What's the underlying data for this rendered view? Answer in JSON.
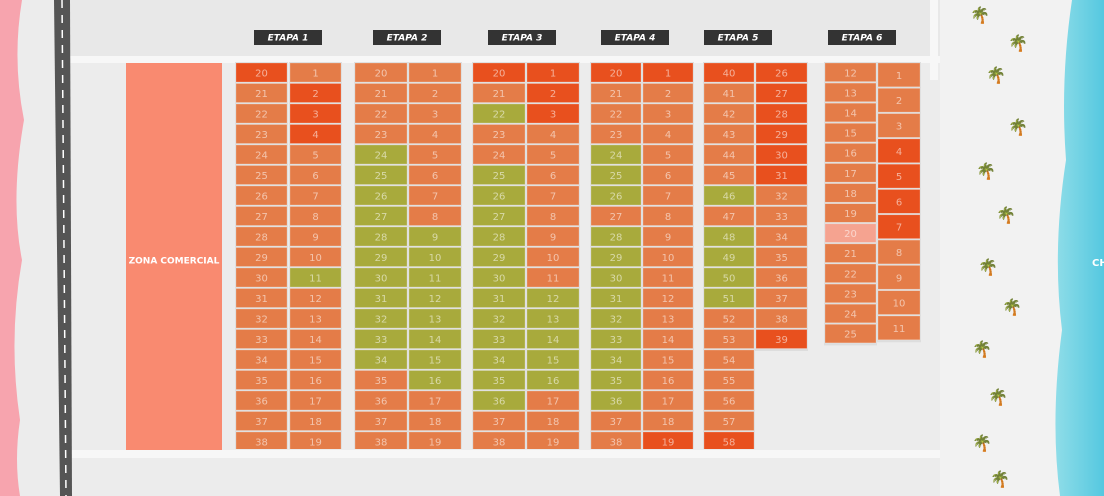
{
  "zone_label": "ZONA COMERCIAL",
  "shore_label": "CHICX",
  "stages": [
    {
      "label": "ETAPA 1",
      "columns": [
        [
          {
            "n": 20,
            "color": "#e8501e"
          },
          {
            "n": 21,
            "color": "#e47c48"
          },
          {
            "n": 22,
            "color": "#e47c48"
          },
          {
            "n": 23,
            "color": "#e47c48"
          },
          {
            "n": 24,
            "color": "#e47c48"
          },
          {
            "n": 25,
            "color": "#e47c48"
          },
          {
            "n": 26,
            "color": "#e47c48"
          },
          {
            "n": 27,
            "color": "#e47c48"
          },
          {
            "n": 28,
            "color": "#e47c48"
          },
          {
            "n": 29,
            "color": "#e47c48"
          },
          {
            "n": 30,
            "color": "#e47c48"
          },
          {
            "n": 31,
            "color": "#e47c48"
          },
          {
            "n": 32,
            "color": "#e47c48"
          },
          {
            "n": 33,
            "color": "#e47c48"
          },
          {
            "n": 34,
            "color": "#e47c48"
          },
          {
            "n": 35,
            "color": "#e47c48"
          },
          {
            "n": 36,
            "color": "#e47c48"
          },
          {
            "n": 37,
            "color": "#e47c48"
          },
          {
            "n": 38,
            "color": "#e47c48"
          }
        ],
        [
          {
            "n": 1,
            "color": "#e47c48"
          },
          {
            "n": 2,
            "color": "#e8501e"
          },
          {
            "n": 3,
            "color": "#e8501e"
          },
          {
            "n": 4,
            "color": "#e8501e"
          },
          {
            "n": 5,
            "color": "#e47c48"
          },
          {
            "n": 6,
            "color": "#e47c48"
          },
          {
            "n": 7,
            "color": "#e47c48"
          },
          {
            "n": 8,
            "color": "#e47c48"
          },
          {
            "n": 9,
            "color": "#e47c48"
          },
          {
            "n": 10,
            "color": "#e47c48"
          },
          {
            "n": 11,
            "color": "#a8aa3c"
          },
          {
            "n": 12,
            "color": "#e47c48"
          },
          {
            "n": 13,
            "color": "#e47c48"
          },
          {
            "n": 14,
            "color": "#e47c48"
          },
          {
            "n": 15,
            "color": "#e47c48"
          },
          {
            "n": 16,
            "color": "#e47c48"
          },
          {
            "n": 17,
            "color": "#e47c48"
          },
          {
            "n": 18,
            "color": "#e47c48"
          },
          {
            "n": 19,
            "color": "#e47c48"
          }
        ]
      ]
    },
    {
      "label": "ETAPA 2",
      "columns": [
        [
          {
            "n": 20,
            "color": "#e47c48"
          },
          {
            "n": 21,
            "color": "#e47c48"
          },
          {
            "n": 22,
            "color": "#e47c48"
          },
          {
            "n": 23,
            "color": "#e47c48"
          },
          {
            "n": 24,
            "color": "#a8aa3c"
          },
          {
            "n": 25,
            "color": "#a8aa3c"
          },
          {
            "n": 26,
            "color": "#a8aa3c"
          },
          {
            "n": 27,
            "color": "#a8aa3c"
          },
          {
            "n": 28,
            "color": "#a8aa3c"
          },
          {
            "n": 29,
            "color": "#a8aa3c"
          },
          {
            "n": 30,
            "color": "#a8aa3c"
          },
          {
            "n": 31,
            "color": "#a8aa3c"
          },
          {
            "n": 32,
            "color": "#a8aa3c"
          },
          {
            "n": 33,
            "color": "#a8aa3c"
          },
          {
            "n": 34,
            "color": "#a8aa3c"
          },
          {
            "n": 35,
            "color": "#e47c48"
          },
          {
            "n": 36,
            "color": "#e47c48"
          },
          {
            "n": 37,
            "color": "#e47c48"
          },
          {
            "n": 38,
            "color": "#e47c48"
          }
        ],
        [
          {
            "n": 1,
            "color": "#e47c48"
          },
          {
            "n": 2,
            "color": "#e47c48"
          },
          {
            "n": 3,
            "color": "#e47c48"
          },
          {
            "n": 4,
            "color": "#e47c48"
          },
          {
            "n": 5,
            "color": "#e47c48"
          },
          {
            "n": 6,
            "color": "#e47c48"
          },
          {
            "n": 7,
            "color": "#e47c48"
          },
          {
            "n": 8,
            "color": "#e47c48"
          },
          {
            "n": 9,
            "color": "#a8aa3c"
          },
          {
            "n": 10,
            "color": "#a8aa3c"
          },
          {
            "n": 11,
            "color": "#a8aa3c"
          },
          {
            "n": 12,
            "color": "#a8aa3c"
          },
          {
            "n": 13,
            "color": "#a8aa3c"
          },
          {
            "n": 14,
            "color": "#a8aa3c"
          },
          {
            "n": 15,
            "color": "#a8aa3c"
          },
          {
            "n": 16,
            "color": "#a8aa3c"
          },
          {
            "n": 17,
            "color": "#e47c48"
          },
          {
            "n": 18,
            "color": "#e47c48"
          },
          {
            "n": 19,
            "color": "#e47c48"
          }
        ]
      ]
    },
    {
      "label": "ETAPA 3",
      "columns": [
        [
          {
            "n": 20,
            "color": "#e8501e"
          },
          {
            "n": 21,
            "color": "#e47c48"
          },
          {
            "n": 22,
            "color": "#a8aa3c"
          },
          {
            "n": 23,
            "color": "#e47c48"
          },
          {
            "n": 24,
            "color": "#e47c48"
          },
          {
            "n": 25,
            "color": "#a8aa3c"
          },
          {
            "n": 26,
            "color": "#a8aa3c"
          },
          {
            "n": 27,
            "color": "#a8aa3c"
          },
          {
            "n": 28,
            "color": "#a8aa3c"
          },
          {
            "n": 29,
            "color": "#a8aa3c"
          },
          {
            "n": 30,
            "color": "#a8aa3c"
          },
          {
            "n": 31,
            "color": "#a8aa3c"
          },
          {
            "n": 32,
            "color": "#a8aa3c"
          },
          {
            "n": 33,
            "color": "#a8aa3c"
          },
          {
            "n": 34,
            "color": "#a8aa3c"
          },
          {
            "n": 35,
            "color": "#a8aa3c"
          },
          {
            "n": 36,
            "color": "#a8aa3c"
          },
          {
            "n": 37,
            "color": "#e47c48"
          },
          {
            "n": 38,
            "color": "#e47c48"
          }
        ],
        [
          {
            "n": 1,
            "color": "#e8501e"
          },
          {
            "n": 2,
            "color": "#e8501e"
          },
          {
            "n": 3,
            "color": "#e8501e"
          },
          {
            "n": 4,
            "color": "#e47c48"
          },
          {
            "n": 5,
            "color": "#e47c48"
          },
          {
            "n": 6,
            "color": "#e47c48"
          },
          {
            "n": 7,
            "color": "#e47c48"
          },
          {
            "n": 8,
            "color": "#e47c48"
          },
          {
            "n": 9,
            "color": "#e47c48"
          },
          {
            "n": 10,
            "color": "#e47c48"
          },
          {
            "n": 11,
            "color": "#e47c48"
          },
          {
            "n": 12,
            "color": "#a8aa3c"
          },
          {
            "n": 13,
            "color": "#a8aa3c"
          },
          {
            "n": 14,
            "color": "#a8aa3c"
          },
          {
            "n": 15,
            "color": "#a8aa3c"
          },
          {
            "n": 16,
            "color": "#a8aa3c"
          },
          {
            "n": 17,
            "color": "#e47c48"
          },
          {
            "n": 18,
            "color": "#e47c48"
          },
          {
            "n": 19,
            "color": "#e47c48"
          }
        ]
      ]
    },
    {
      "label": "ETAPA 4",
      "columns": [
        [
          {
            "n": 20,
            "color": "#e8501e"
          },
          {
            "n": 21,
            "color": "#e47c48"
          },
          {
            "n": 22,
            "color": "#e47c48"
          },
          {
            "n": 23,
            "color": "#e47c48"
          },
          {
            "n": 24,
            "color": "#a8aa3c"
          },
          {
            "n": 25,
            "color": "#a8aa3c"
          },
          {
            "n": 26,
            "color": "#a8aa3c"
          },
          {
            "n": 27,
            "color": "#e47c48"
          },
          {
            "n": 28,
            "color": "#a8aa3c"
          },
          {
            "n": 29,
            "color": "#a8aa3c"
          },
          {
            "n": 30,
            "color": "#a8aa3c"
          },
          {
            "n": 31,
            "color": "#a8aa3c"
          },
          {
            "n": 32,
            "color": "#a8aa3c"
          },
          {
            "n": 33,
            "color": "#a8aa3c"
          },
          {
            "n": 34,
            "color": "#a8aa3c"
          },
          {
            "n": 35,
            "color": "#a8aa3c"
          },
          {
            "n": 36,
            "color": "#a8aa3c"
          },
          {
            "n": 37,
            "color": "#e47c48"
          },
          {
            "n": 38,
            "color": "#e47c48"
          }
        ],
        [
          {
            "n": 1,
            "color": "#e8501e"
          },
          {
            "n": 2,
            "color": "#e47c48"
          },
          {
            "n": 3,
            "color": "#e47c48"
          },
          {
            "n": 4,
            "color": "#e47c48"
          },
          {
            "n": 5,
            "color": "#e47c48"
          },
          {
            "n": 6,
            "color": "#e47c48"
          },
          {
            "n": 7,
            "color": "#e47c48"
          },
          {
            "n": 8,
            "color": "#e47c48"
          },
          {
            "n": 9,
            "color": "#e47c48"
          },
          {
            "n": 10,
            "color": "#e47c48"
          },
          {
            "n": 11,
            "color": "#e47c48"
          },
          {
            "n": 12,
            "color": "#e47c48"
          },
          {
            "n": 13,
            "color": "#e47c48"
          },
          {
            "n": 14,
            "color": "#e47c48"
          },
          {
            "n": 15,
            "color": "#e47c48"
          },
          {
            "n": 16,
            "color": "#e47c48"
          },
          {
            "n": 17,
            "color": "#e47c48"
          },
          {
            "n": 18,
            "color": "#e47c48"
          },
          {
            "n": 19,
            "color": "#e8501e"
          }
        ]
      ]
    },
    {
      "label": "ETAPA 5",
      "columns": [
        [
          {
            "n": 40,
            "color": "#e8501e"
          },
          {
            "n": 41,
            "color": "#e47c48"
          },
          {
            "n": 42,
            "color": "#e47c48"
          },
          {
            "n": 43,
            "color": "#e47c48"
          },
          {
            "n": 44,
            "color": "#e47c48"
          },
          {
            "n": 45,
            "color": "#e47c48"
          },
          {
            "n": 46,
            "color": "#a8aa3c"
          },
          {
            "n": 47,
            "color": "#e47c48"
          },
          {
            "n": 48,
            "color": "#a8aa3c"
          },
          {
            "n": 49,
            "color": "#a8aa3c"
          },
          {
            "n": 50,
            "color": "#a8aa3c"
          },
          {
            "n": 51,
            "color": "#a8aa3c"
          },
          {
            "n": 52,
            "color": "#e47c48"
          },
          {
            "n": 53,
            "color": "#e47c48"
          },
          {
            "n": 54,
            "color": "#e47c48"
          },
          {
            "n": 55,
            "color": "#e47c48"
          },
          {
            "n": 56,
            "color": "#e47c48"
          },
          {
            "n": 57,
            "color": "#e47c48"
          },
          {
            "n": 58,
            "color": "#e8501e"
          }
        ],
        [
          {
            "n": 26,
            "color": "#e8501e"
          },
          {
            "n": 27,
            "color": "#e8501e"
          },
          {
            "n": 28,
            "color": "#e8501e"
          },
          {
            "n": 29,
            "color": "#e8501e"
          },
          {
            "n": 30,
            "color": "#e8501e"
          },
          {
            "n": 31,
            "color": "#e8501e"
          },
          {
            "n": 32,
            "color": "#e47c48"
          },
          {
            "n": 33,
            "color": "#e47c48"
          },
          {
            "n": 34,
            "color": "#e47c48"
          },
          {
            "n": 35,
            "color": "#e47c48"
          },
          {
            "n": 36,
            "color": "#e47c48"
          },
          {
            "n": 37,
            "color": "#e47c48"
          },
          {
            "n": 38,
            "color": "#e47c48"
          },
          {
            "n": 39,
            "color": "#e8501e"
          }
        ]
      ]
    },
    {
      "label": "ETAPA 6",
      "columns": [
        [
          {
            "n": 12,
            "color": "#e47c48"
          },
          {
            "n": 13,
            "color": "#e47c48"
          },
          {
            "n": 14,
            "color": "#e47c48"
          },
          {
            "n": 15,
            "color": "#e47c48"
          },
          {
            "n": 16,
            "color": "#e47c48"
          },
          {
            "n": 17,
            "color": "#e47c48"
          },
          {
            "n": 18,
            "color": "#e47c48"
          },
          {
            "n": 19,
            "color": "#e47c48"
          },
          {
            "n": 20,
            "color": "#f5a390"
          },
          {
            "n": 21,
            "color": "#e47c48"
          },
          {
            "n": 22,
            "color": "#e47c48"
          },
          {
            "n": 23,
            "color": "#e47c48"
          },
          {
            "n": 24,
            "color": "#e47c48"
          },
          {
            "n": 25,
            "color": "#e47c48"
          }
        ],
        [
          {
            "n": 1,
            "color": "#e47c48"
          },
          {
            "n": 2,
            "color": "#e47c48"
          },
          {
            "n": 3,
            "color": "#e47c48"
          },
          {
            "n": 4,
            "color": "#e8501e"
          },
          {
            "n": 5,
            "color": "#e8501e"
          },
          {
            "n": 6,
            "color": "#e8501e"
          },
          {
            "n": 7,
            "color": "#e8501e"
          },
          {
            "n": 8,
            "color": "#e47c48"
          },
          {
            "n": 9,
            "color": "#e47c48"
          },
          {
            "n": 10,
            "color": "#e47c48"
          },
          {
            "n": 11,
            "color": "#e47c48"
          }
        ]
      ]
    }
  ]
}
